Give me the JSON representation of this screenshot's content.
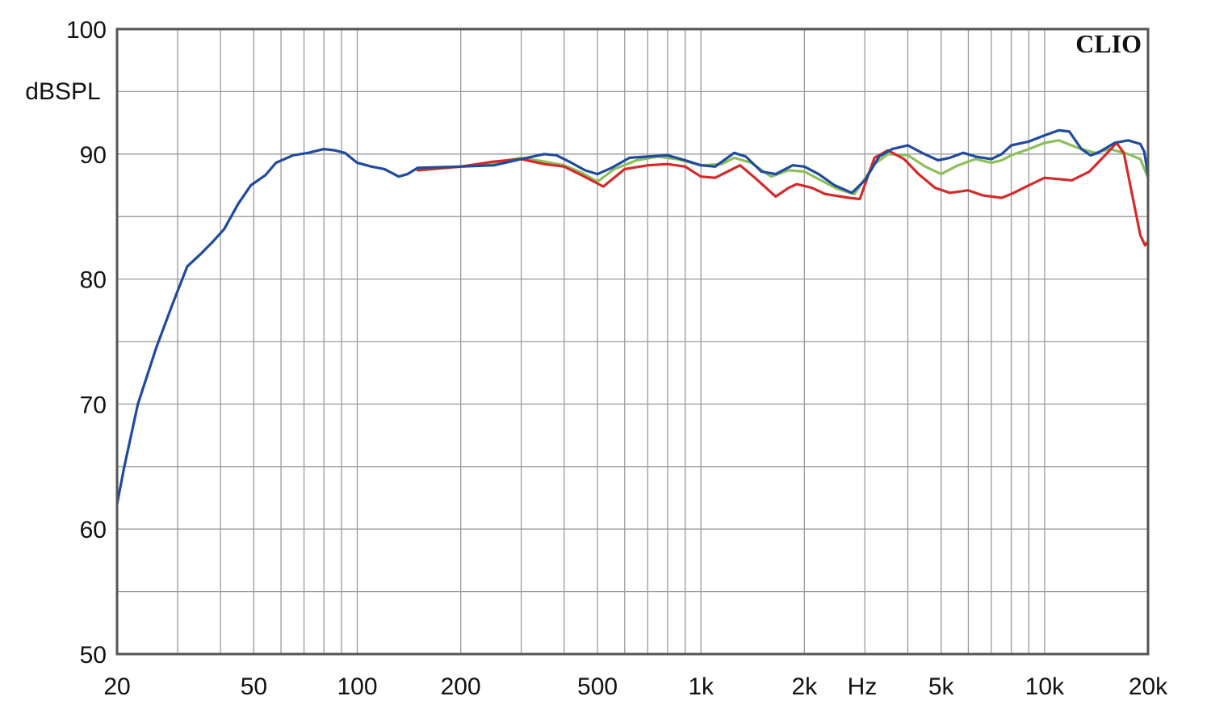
{
  "watermark": "CLIO",
  "chart_data": {
    "type": "line",
    "ylabel": "dBSPL",
    "xlabel": "Hz",
    "x_scale": "log",
    "xlim": [
      20,
      20000
    ],
    "ylim": [
      50,
      100
    ],
    "grid": true,
    "y_ticks": [
      50,
      60,
      70,
      80,
      90,
      100
    ],
    "x_ticks": [
      {
        "value": 20,
        "label": "20"
      },
      {
        "value": 50,
        "label": "50"
      },
      {
        "value": 100,
        "label": "100"
      },
      {
        "value": 200,
        "label": "200"
      },
      {
        "value": 500,
        "label": "500"
      },
      {
        "value": 1000,
        "label": "1k"
      },
      {
        "value": 2000,
        "label": "2k"
      },
      {
        "value": 5000,
        "label": "5k"
      },
      {
        "value": 10000,
        "label": "10k"
      },
      {
        "value": 20000,
        "label": "20k"
      }
    ],
    "series": [
      {
        "color": "#8cbf5a",
        "points": [
          [
            150,
            88.7
          ],
          [
            200,
            89
          ],
          [
            250,
            89.3
          ],
          [
            300,
            89.7
          ],
          [
            350,
            89.4
          ],
          [
            400,
            89.1
          ],
          [
            450,
            88.5
          ],
          [
            500,
            87.8
          ],
          [
            560,
            88.8
          ],
          [
            650,
            89.5
          ],
          [
            750,
            89.8
          ],
          [
            850,
            89.6
          ],
          [
            1000,
            89.1
          ],
          [
            1150,
            89.2
          ],
          [
            1250,
            89.7
          ],
          [
            1400,
            89.3
          ],
          [
            1600,
            88.2
          ],
          [
            1800,
            88.7
          ],
          [
            2000,
            88.6
          ],
          [
            2200,
            88
          ],
          [
            2500,
            87.2
          ],
          [
            2800,
            86.8
          ],
          [
            3200,
            89.2
          ],
          [
            3500,
            90
          ],
          [
            4000,
            89.9
          ],
          [
            4500,
            89
          ],
          [
            5000,
            88.4
          ],
          [
            5600,
            89.1
          ],
          [
            6300,
            89.6
          ],
          [
            7000,
            89.3
          ],
          [
            7500,
            89.5
          ],
          [
            8000,
            89.9
          ],
          [
            9000,
            90.4
          ],
          [
            10000,
            90.9
          ],
          [
            11000,
            91.1
          ],
          [
            12500,
            90.5
          ],
          [
            14000,
            90.1
          ],
          [
            15500,
            90.4
          ],
          [
            17500,
            90
          ],
          [
            19000,
            89.6
          ],
          [
            20000,
            88.1
          ]
        ]
      },
      {
        "color": "#d42a2a",
        "points": [
          [
            150,
            88.7
          ],
          [
            200,
            89
          ],
          [
            250,
            89.4
          ],
          [
            300,
            89.6
          ],
          [
            350,
            89.2
          ],
          [
            400,
            89
          ],
          [
            450,
            88.3
          ],
          [
            520,
            87.4
          ],
          [
            600,
            88.8
          ],
          [
            700,
            89.1
          ],
          [
            800,
            89.2
          ],
          [
            900,
            89
          ],
          [
            1000,
            88.2
          ],
          [
            1100,
            88.1
          ],
          [
            1300,
            89.1
          ],
          [
            1450,
            88
          ],
          [
            1650,
            86.6
          ],
          [
            1800,
            87.3
          ],
          [
            1900,
            87.6
          ],
          [
            2100,
            87.3
          ],
          [
            2300,
            86.8
          ],
          [
            2700,
            86.5
          ],
          [
            2900,
            86.4
          ],
          [
            3200,
            89.7
          ],
          [
            3500,
            90.3
          ],
          [
            3900,
            89.6
          ],
          [
            4300,
            88.4
          ],
          [
            4800,
            87.3
          ],
          [
            5300,
            86.9
          ],
          [
            6000,
            87.1
          ],
          [
            6600,
            86.7
          ],
          [
            7500,
            86.5
          ],
          [
            8000,
            86.8
          ],
          [
            9000,
            87.5
          ],
          [
            10000,
            88.1
          ],
          [
            11000,
            88
          ],
          [
            12000,
            87.9
          ],
          [
            13500,
            88.6
          ],
          [
            15000,
            89.9
          ],
          [
            16200,
            90.9
          ],
          [
            17000,
            90.1
          ],
          [
            18000,
            86.7
          ],
          [
            19000,
            83.5
          ],
          [
            19600,
            82.7
          ],
          [
            20000,
            83
          ]
        ]
      },
      {
        "color": "#1f4a9e",
        "points": [
          [
            20,
            62
          ],
          [
            21,
            65
          ],
          [
            23,
            70
          ],
          [
            26,
            74.5
          ],
          [
            29,
            78
          ],
          [
            32,
            81
          ],
          [
            35,
            82
          ],
          [
            38,
            83
          ],
          [
            41,
            84
          ],
          [
            45,
            86
          ],
          [
            49,
            87.5
          ],
          [
            54,
            88.3
          ],
          [
            58,
            89.3
          ],
          [
            65,
            89.9
          ],
          [
            72,
            90.1
          ],
          [
            80,
            90.4
          ],
          [
            86,
            90.3
          ],
          [
            92,
            90.1
          ],
          [
            100,
            89.3
          ],
          [
            110,
            89
          ],
          [
            120,
            88.8
          ],
          [
            132,
            88.2
          ],
          [
            140,
            88.4
          ],
          [
            150,
            88.9
          ],
          [
            200,
            89
          ],
          [
            250,
            89.1
          ],
          [
            300,
            89.6
          ],
          [
            350,
            90
          ],
          [
            380,
            89.9
          ],
          [
            420,
            89.3
          ],
          [
            460,
            88.7
          ],
          [
            500,
            88.4
          ],
          [
            550,
            88.9
          ],
          [
            620,
            89.7
          ],
          [
            700,
            89.8
          ],
          [
            800,
            89.9
          ],
          [
            900,
            89.5
          ],
          [
            1000,
            89.1
          ],
          [
            1100,
            89
          ],
          [
            1250,
            90.1
          ],
          [
            1350,
            89.8
          ],
          [
            1500,
            88.6
          ],
          [
            1650,
            88.4
          ],
          [
            1850,
            89.1
          ],
          [
            2000,
            89
          ],
          [
            2200,
            88.4
          ],
          [
            2450,
            87.5
          ],
          [
            2750,
            86.9
          ],
          [
            3000,
            87.9
          ],
          [
            3300,
            89.8
          ],
          [
            3600,
            90.4
          ],
          [
            4000,
            90.7
          ],
          [
            4400,
            90.1
          ],
          [
            4900,
            89.5
          ],
          [
            5300,
            89.7
          ],
          [
            5800,
            90.1
          ],
          [
            6300,
            89.8
          ],
          [
            7000,
            89.6
          ],
          [
            7500,
            90
          ],
          [
            8000,
            90.7
          ],
          [
            9000,
            91
          ],
          [
            10000,
            91.5
          ],
          [
            11000,
            91.9
          ],
          [
            11800,
            91.8
          ],
          [
            12800,
            90.4
          ],
          [
            13600,
            89.9
          ],
          [
            14300,
            90.1
          ],
          [
            16000,
            90.9
          ],
          [
            17500,
            91.1
          ],
          [
            19000,
            90.8
          ],
          [
            19500,
            90.2
          ],
          [
            20000,
            88.3
          ]
        ]
      }
    ]
  }
}
